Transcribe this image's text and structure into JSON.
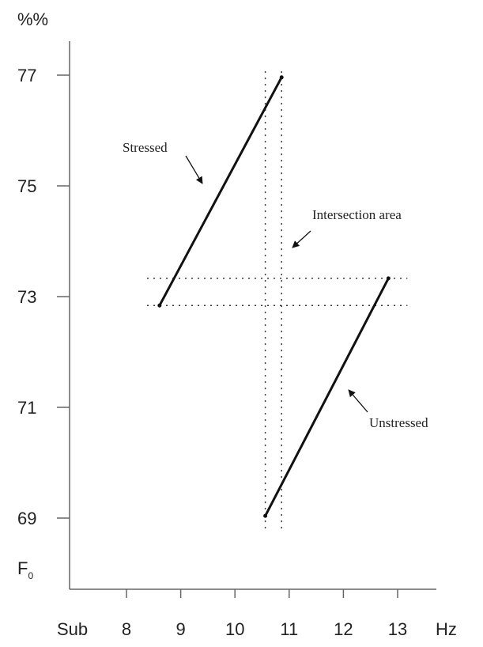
{
  "chart_data": {
    "type": "line",
    "title": "",
    "ylabel": "%%",
    "ylabel_bottom": "F",
    "ylabel_bottom_sub": "0",
    "xlabel": "Hz",
    "x_first_tick": "Sub",
    "xlim": [
      7.0,
      13.8
    ],
    "ylim": [
      67.7,
      78.2
    ],
    "xticks": [
      8,
      9,
      10,
      11,
      12,
      13
    ],
    "yticks": [
      69,
      71,
      73,
      75,
      77
    ],
    "grid": false,
    "series": [
      {
        "name": "Stressed",
        "points": [
          [
            8.61,
            72.84
          ],
          [
            10.86,
            76.96
          ]
        ]
      },
      {
        "name": "Unstressed",
        "points": [
          [
            10.56,
            69.04
          ],
          [
            12.83,
            73.33
          ]
        ]
      }
    ],
    "reference_lines": {
      "horizontal": [
        73.33,
        72.84
      ],
      "vertical": [
        10.56,
        10.86
      ],
      "h_extent": [
        8.38,
        13.18
      ],
      "v_extent": [
        68.79,
        77.07
      ]
    },
    "annotations": [
      {
        "text": "Stressed"
      },
      {
        "text": "Intersection area"
      },
      {
        "text": "Unstressed"
      }
    ]
  }
}
